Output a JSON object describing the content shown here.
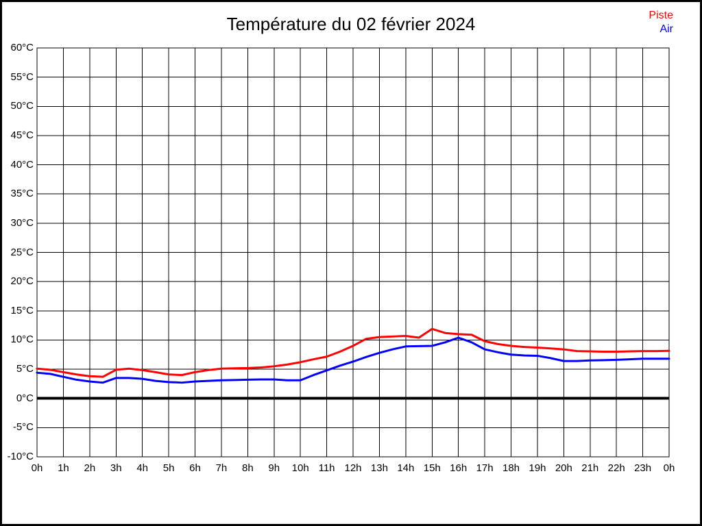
{
  "title": "Température du 02 février 2024",
  "legend": {
    "piste": {
      "label": "Piste",
      "color": "#ff0000"
    },
    "air": {
      "label": "Air",
      "color": "#0000ff"
    }
  },
  "chart_data": {
    "type": "line",
    "title": "Température du 02 février 2024",
    "x_unit": "hour",
    "xlim": [
      0,
      24
    ],
    "ylim": [
      -10,
      60
    ],
    "y_tick_step": 5,
    "grid": "on",
    "zero_line": "bold",
    "legend_position": "top-right",
    "axis_color": "#000000",
    "background": "#ffffff",
    "x_tick_labels": [
      "0h",
      "1h",
      "2h",
      "3h",
      "4h",
      "5h",
      "6h",
      "7h",
      "8h",
      "9h",
      "10h",
      "11h",
      "12h",
      "13h",
      "14h",
      "15h",
      "16h",
      "17h",
      "18h",
      "19h",
      "20h",
      "21h",
      "22h",
      "23h",
      "0h"
    ],
    "y_tick_labels": [
      "60°C",
      "55°C",
      "50°C",
      "45°C",
      "40°C",
      "35°C",
      "30°C",
      "25°C",
      "20°C",
      "15°C",
      "10°C",
      "5°C",
      "0°C",
      "-5°C",
      "-10°C"
    ],
    "x": [
      0,
      0.5,
      1,
      1.5,
      2,
      2.5,
      3,
      3.5,
      4,
      4.5,
      5,
      5.5,
      6,
      6.5,
      7,
      7.5,
      8,
      8.5,
      9,
      9.5,
      10,
      10.5,
      11,
      11.5,
      12,
      12.5,
      13,
      13.5,
      14,
      14.5,
      15,
      15.5,
      16,
      16.5,
      17,
      17.5,
      18,
      18.5,
      19,
      19.5,
      20,
      20.5,
      21,
      21.5,
      22,
      22.5,
      23,
      23.5,
      24
    ],
    "series": [
      {
        "name": "Piste",
        "color": "#ff0000",
        "values": [
          5.1,
          4.9,
          4.5,
          4.1,
          3.8,
          3.7,
          4.9,
          5.1,
          4.85,
          4.5,
          4.1,
          4.0,
          4.5,
          4.85,
          5.1,
          5.15,
          5.2,
          5.3,
          5.5,
          5.8,
          6.2,
          6.7,
          7.15,
          8.0,
          9.0,
          10.2,
          10.5,
          10.6,
          10.7,
          10.4,
          11.9,
          11.2,
          11.0,
          10.9,
          9.8,
          9.3,
          9.0,
          8.8,
          8.7,
          8.55,
          8.4,
          8.1,
          8.05,
          8.0,
          8.0,
          8.05,
          8.1,
          8.1,
          8.15
        ]
      },
      {
        "name": "Air",
        "color": "#0000ff",
        "values": [
          4.4,
          4.2,
          3.7,
          3.2,
          2.9,
          2.7,
          3.5,
          3.5,
          3.35,
          3.0,
          2.8,
          2.7,
          2.9,
          3.0,
          3.1,
          3.15,
          3.2,
          3.25,
          3.25,
          3.1,
          3.1,
          4.0,
          4.8,
          5.6,
          6.3,
          7.1,
          7.8,
          8.4,
          8.9,
          8.95,
          9.0,
          9.6,
          10.4,
          9.6,
          8.4,
          7.9,
          7.5,
          7.35,
          7.3,
          6.9,
          6.4,
          6.4,
          6.5,
          6.55,
          6.6,
          6.7,
          6.8,
          6.8,
          6.8
        ]
      }
    ]
  }
}
